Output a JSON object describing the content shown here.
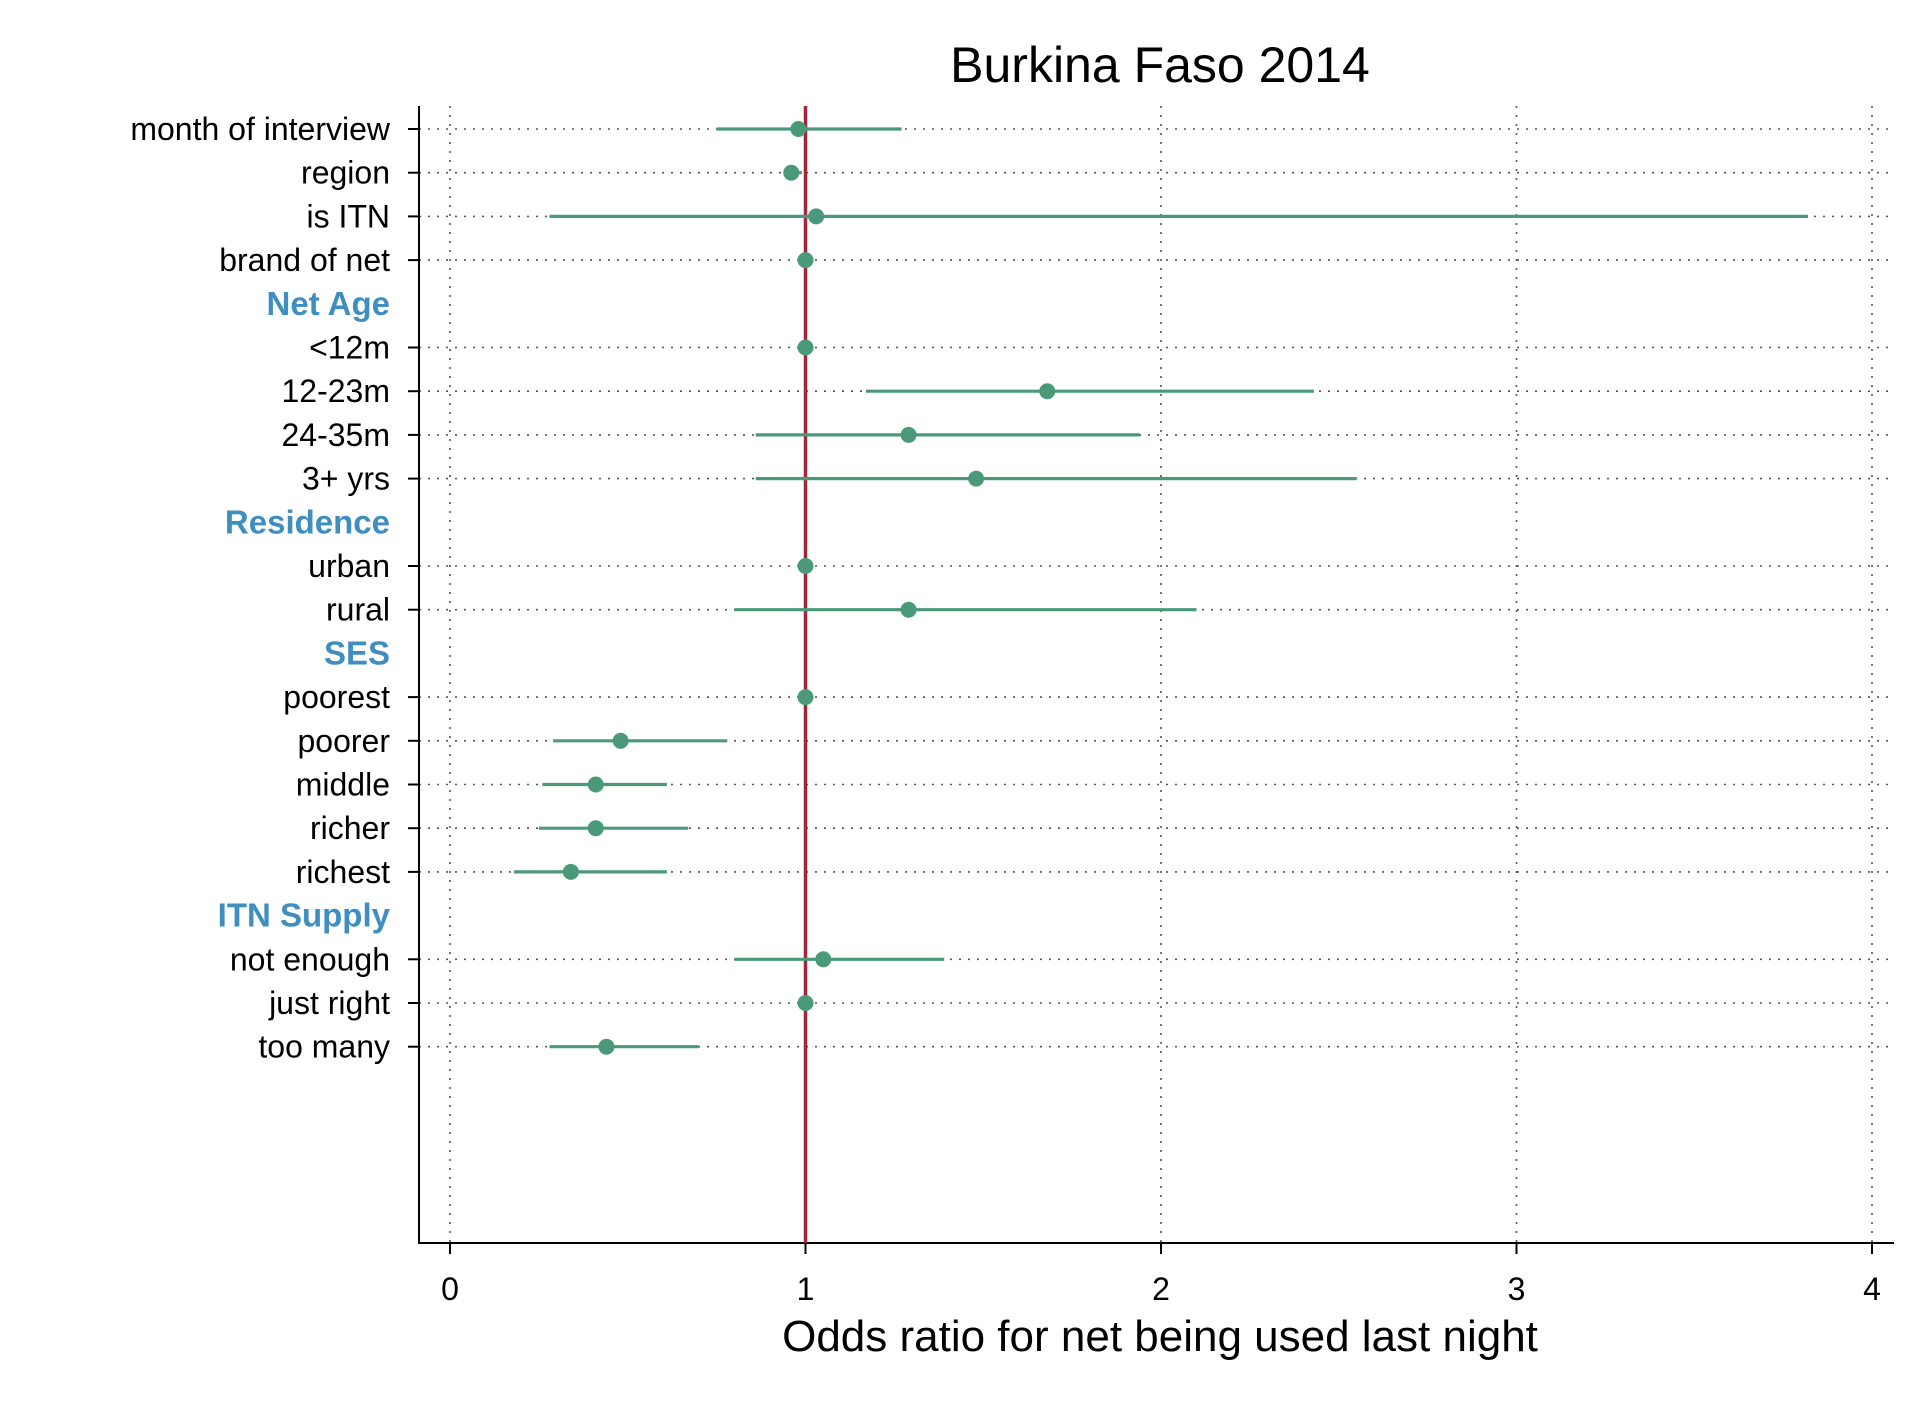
{
  "colors": {
    "estimate": "#4a9a7a",
    "reference_line": "#a32638",
    "group_label": "#3f8ec0",
    "grid": "#555555",
    "axis": "#000000"
  },
  "chart_data": {
    "type": "forest",
    "title": "Burkina Faso 2014",
    "xlabel": "Odds ratio for net being used last night",
    "ylabel": "",
    "xlim": [
      0,
      4
    ],
    "xticks": [
      "0",
      "1",
      "2",
      "3",
      "4"
    ],
    "xtick_values": [
      0,
      1,
      2,
      3,
      4
    ],
    "reference_line": 1,
    "grid": "dotted",
    "rows": [
      {
        "label": "month of interview",
        "estimate": 0.98,
        "ci": [
          0.75,
          1.27
        ]
      },
      {
        "label": "region",
        "estimate": 0.96,
        "ci": [
          0.94,
          0.99
        ]
      },
      {
        "label": "is ITN",
        "estimate": 1.03,
        "ci": [
          0.28,
          3.82
        ]
      },
      {
        "label": "brand of net",
        "estimate": 1.0,
        "ci": [
          0.98,
          1.01
        ]
      },
      {
        "group": "Net Age"
      },
      {
        "label": "<12m",
        "estimate": 1.0,
        "ci": [
          1.0,
          1.0
        ]
      },
      {
        "label": "12-23m",
        "estimate": 1.68,
        "ci": [
          1.17,
          2.43
        ]
      },
      {
        "label": "24-35m",
        "estimate": 1.29,
        "ci": [
          0.86,
          1.94
        ]
      },
      {
        "label": "3+ yrs",
        "estimate": 1.48,
        "ci": [
          0.86,
          2.55
        ]
      },
      {
        "group": "Residence"
      },
      {
        "label": "urban",
        "estimate": 1.0,
        "ci": [
          1.0,
          1.0
        ]
      },
      {
        "label": "rural",
        "estimate": 1.29,
        "ci": [
          0.8,
          2.1
        ]
      },
      {
        "group": "SES"
      },
      {
        "label": "poorest",
        "estimate": 1.0,
        "ci": [
          1.0,
          1.0
        ]
      },
      {
        "label": "poorer",
        "estimate": 0.48,
        "ci": [
          0.29,
          0.78
        ]
      },
      {
        "label": "middle",
        "estimate": 0.41,
        "ci": [
          0.26,
          0.61
        ]
      },
      {
        "label": "richer",
        "estimate": 0.41,
        "ci": [
          0.25,
          0.67
        ]
      },
      {
        "label": "richest",
        "estimate": 0.34,
        "ci": [
          0.18,
          0.61
        ]
      },
      {
        "group": "ITN Supply"
      },
      {
        "label": "not enough",
        "estimate": 1.05,
        "ci": [
          0.8,
          1.39
        ]
      },
      {
        "label": "just right",
        "estimate": 1.0,
        "ci": [
          1.0,
          1.0
        ]
      },
      {
        "label": "too many",
        "estimate": 0.44,
        "ci": [
          0.28,
          0.7
        ]
      }
    ]
  }
}
